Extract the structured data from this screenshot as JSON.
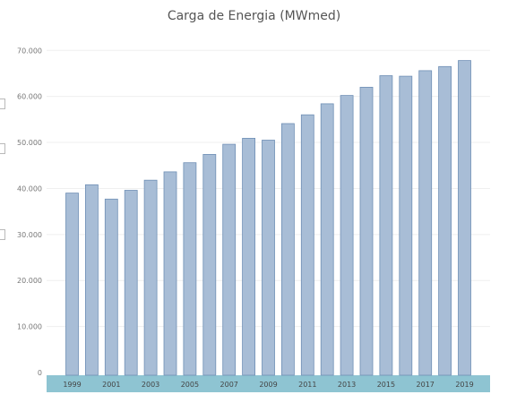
{
  "chart_data": {
    "type": "bar",
    "title": "Carga de Energia (MWmed)",
    "xlabel": "",
    "ylabel": "",
    "categories": [
      "1999",
      "2000",
      "2001",
      "2002",
      "2003",
      "2004",
      "2005",
      "2006",
      "2007",
      "2008",
      "2009",
      "2010",
      "2011",
      "2012",
      "2013",
      "2014",
      "2015",
      "2016",
      "2017",
      "2018",
      "2019"
    ],
    "x_tick_labels": [
      "1999",
      "2001",
      "2003",
      "2005",
      "2007",
      "2009",
      "2011",
      "2013",
      "2015",
      "2017",
      "2019"
    ],
    "values": [
      39000,
      40800,
      37700,
      39600,
      41800,
      43600,
      45600,
      47400,
      49600,
      50900,
      50500,
      54100,
      56000,
      58400,
      60200,
      62000,
      64500,
      64400,
      65600,
      66500,
      67800
    ],
    "ylim": [
      0,
      72000
    ],
    "y_ticks": [
      0,
      10000,
      20000,
      30000,
      40000,
      50000,
      60000,
      70000
    ],
    "y_tick_labels": [
      "0",
      "10.000",
      "20.000",
      "30.000",
      "40.000",
      "50.000",
      "60.000",
      "70.000"
    ],
    "grid": true,
    "legend": "none",
    "colors": {
      "bar_fill": "#a8bdd6",
      "bar_stroke": "#6f8fb5",
      "axis_band": "#8ec4d2",
      "gridline": "#efefef"
    }
  }
}
